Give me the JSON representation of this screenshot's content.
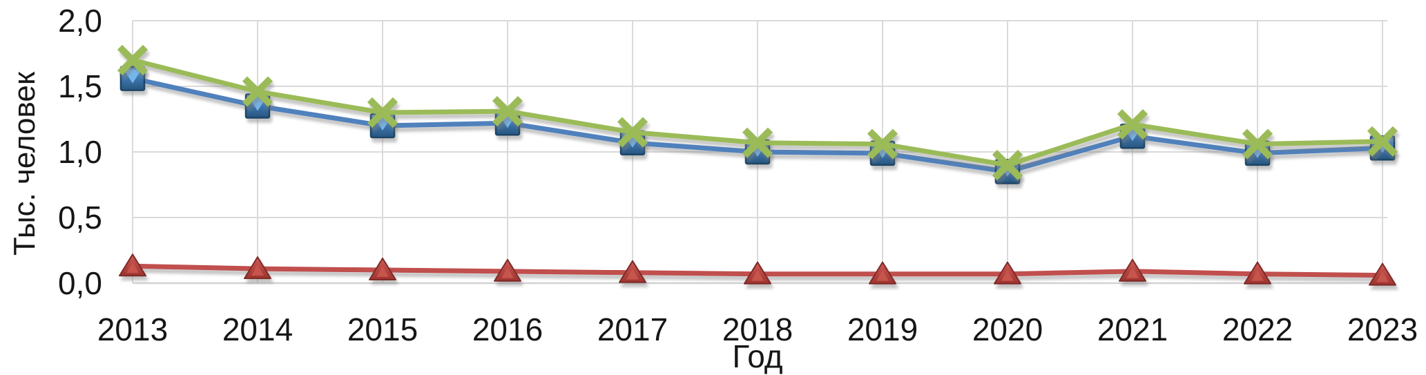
{
  "chart_data": {
    "type": "line",
    "title": "",
    "xlabel": "Год",
    "ylabel": "Тыс. человек",
    "x": [
      2013,
      2014,
      2015,
      2016,
      2017,
      2018,
      2019,
      2020,
      2021,
      2022,
      2023
    ],
    "x_tick_labels": [
      "2013",
      "2014",
      "2015",
      "2016",
      "2017",
      "2018",
      "2019",
      "2020",
      "2021",
      "2022",
      "2023"
    ],
    "y_ticks": [
      0,
      0.5,
      1.0,
      1.5,
      2.0
    ],
    "y_tick_labels": [
      "0,0",
      "0,5",
      "1,0",
      "1,5",
      "2,0"
    ],
    "ylim": [
      0,
      2.0
    ],
    "grid": true,
    "legend_position": "none",
    "series": [
      {
        "name": "green line (x markers)",
        "marker": "x",
        "color": "#9BBB59",
        "values": [
          1.7,
          1.46,
          1.3,
          1.31,
          1.15,
          1.07,
          1.06,
          0.9,
          1.21,
          1.06,
          1.08
        ]
      },
      {
        "name": "blue line (square markers)",
        "marker": "square",
        "color": "#4F81BD",
        "values": [
          1.56,
          1.35,
          1.2,
          1.22,
          1.07,
          1.0,
          0.99,
          0.85,
          1.12,
          0.99,
          1.03
        ]
      },
      {
        "name": "red line (triangle markers)",
        "marker": "triangle",
        "color": "#C0504D",
        "values": [
          0.13,
          0.11,
          0.1,
          0.09,
          0.08,
          0.07,
          0.07,
          0.07,
          0.09,
          0.07,
          0.06
        ]
      }
    ],
    "colors": {
      "gridline": "#DADADA",
      "axis_line": "#D2D2D2",
      "text": "#161616",
      "background": "#FFFFFF"
    }
  }
}
